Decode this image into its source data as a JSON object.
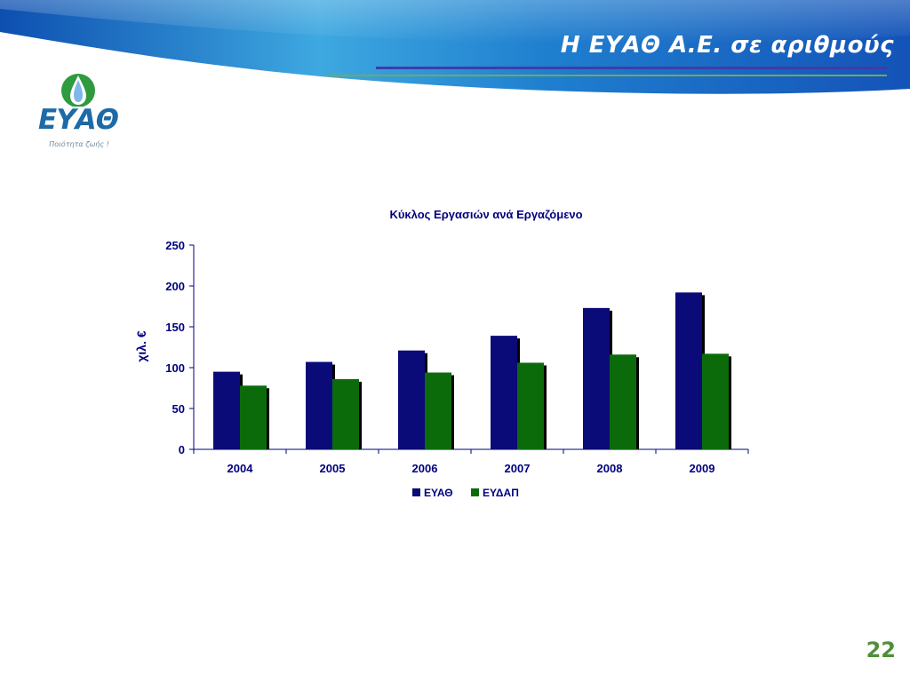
{
  "slide": {
    "title": "Η ΕΥΑΘ Α.Ε. σε αριθμούς",
    "page_number": "22"
  },
  "logo": {
    "wordmark": "ΕΥΑΘ",
    "slogan": "Ποιότητα ζωής !"
  },
  "colors": {
    "series_eyath": "#0a0a78",
    "series_eydap": "#0b6b0b",
    "title_rule_blue": "#3d3da8",
    "title_rule_green": "#79a84f",
    "page_number": "#4f8f3a"
  },
  "chart_data": {
    "type": "bar",
    "title": "Κύκλος Εργασιών ανά Εργαζόμενο",
    "ylabel": "χιλ. €",
    "xlabel": "",
    "categories": [
      "2004",
      "2005",
      "2006",
      "2007",
      "2008",
      "2009"
    ],
    "series": [
      {
        "name": "ΕΥΑΘ",
        "values": [
          95,
          107,
          121,
          139,
          173,
          192
        ]
      },
      {
        "name": "ΕΥΔΑΠ",
        "values": [
          78,
          86,
          94,
          106,
          116,
          117
        ]
      }
    ],
    "ylim": [
      0,
      250
    ],
    "yticks": [
      0,
      50,
      100,
      150,
      200,
      250
    ],
    "grid": false,
    "legend": "bottom"
  }
}
